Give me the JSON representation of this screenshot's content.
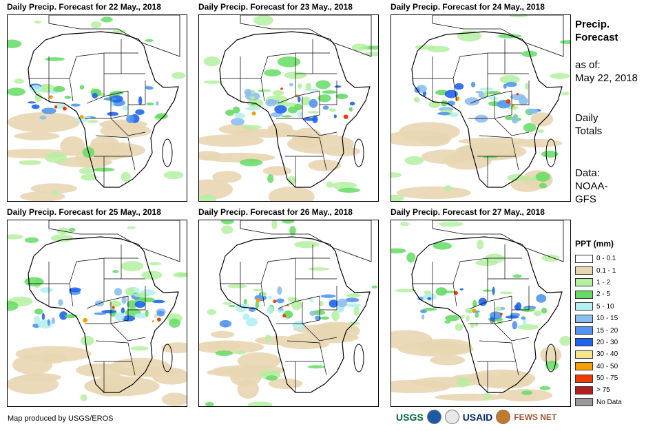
{
  "panels": [
    {
      "title": "Daily Precip. Forecast for 22 May., 2018"
    },
    {
      "title": "Daily Precip. Forecast for 23 May., 2018"
    },
    {
      "title": "Daily Precip. Forecast for 24 May., 2018"
    },
    {
      "title": "Daily Precip. Forecast for 25 May., 2018"
    },
    {
      "title": "Daily Precip. Forecast for 26 May., 2018"
    },
    {
      "title": "Daily Precip. Forecast for 27 May., 2018"
    }
  ],
  "info": {
    "title_line1": "Precip.",
    "title_line2": "Forecast",
    "asof_label": "as of:",
    "asof_date": "May 22, 2018",
    "totals_line1": "Daily",
    "totals_line2": "Totals",
    "data_line1": "Data:",
    "data_line2": "NOAA-",
    "data_line3": "GFS"
  },
  "legend": {
    "title": "PPT (mm)",
    "items": [
      {
        "label": "0 - 0.1",
        "color": "#ffffff"
      },
      {
        "label": "0.1 - 1",
        "color": "#e8d6b3"
      },
      {
        "label": "1 - 2",
        "color": "#b4f0a0"
      },
      {
        "label": "2 - 5",
        "color": "#64dc64"
      },
      {
        "label": "5 - 10",
        "color": "#b4f0f0"
      },
      {
        "label": "10 - 15",
        "color": "#8cbef0"
      },
      {
        "label": "15 - 20",
        "color": "#5096f0"
      },
      {
        "label": "20 - 30",
        "color": "#1e64f0"
      },
      {
        "label": "30 - 40",
        "color": "#f5e68c"
      },
      {
        "label": "40 - 50",
        "color": "#f5a000"
      },
      {
        "label": "50 - 75",
        "color": "#f03c00"
      },
      {
        "label": "> 75",
        "color": "#b41e1e"
      },
      {
        "label": "No Data",
        "color": "#999999"
      }
    ]
  },
  "credit": "Map produced by USGS/EROS",
  "logos": {
    "usgs": "USGS",
    "usaid": "USAID",
    "fewsnet": "FEWS NET"
  }
}
